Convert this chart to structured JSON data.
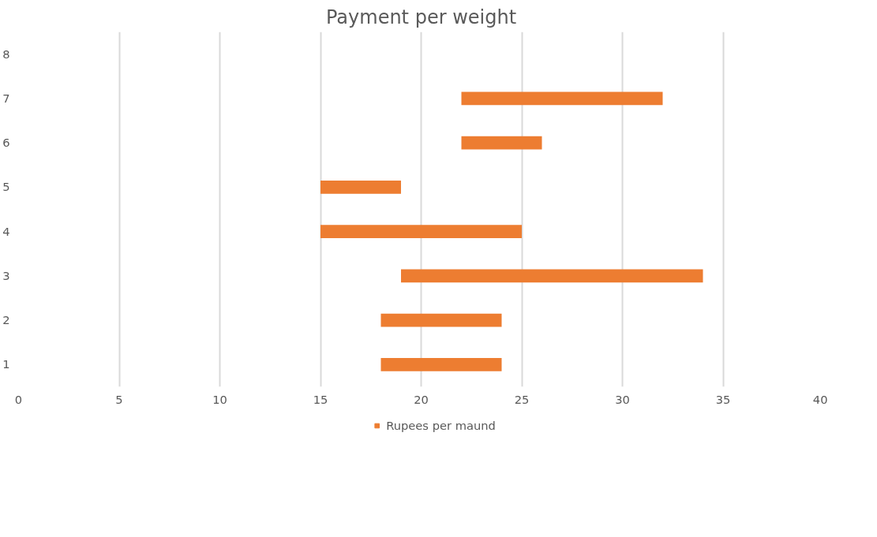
{
  "chart_data": {
    "type": "bar",
    "orientation": "horizontal",
    "title": "Payment per weight",
    "categories": [
      "8",
      "7",
      "6",
      "5",
      "4",
      "3",
      "2",
      "1"
    ],
    "series": [
      {
        "name": "Rupees per maund",
        "color": "#ed7d31",
        "values": [
          null,
          10,
          4,
          4,
          10,
          15,
          6,
          6
        ],
        "base": [
          null,
          22,
          22,
          15,
          15,
          19,
          18,
          18
        ]
      }
    ],
    "xlim": [
      0,
      40
    ],
    "xticks": [
      0,
      5,
      10,
      15,
      20,
      25,
      30,
      35,
      40
    ],
    "grid": "x",
    "legend": "bottom"
  }
}
